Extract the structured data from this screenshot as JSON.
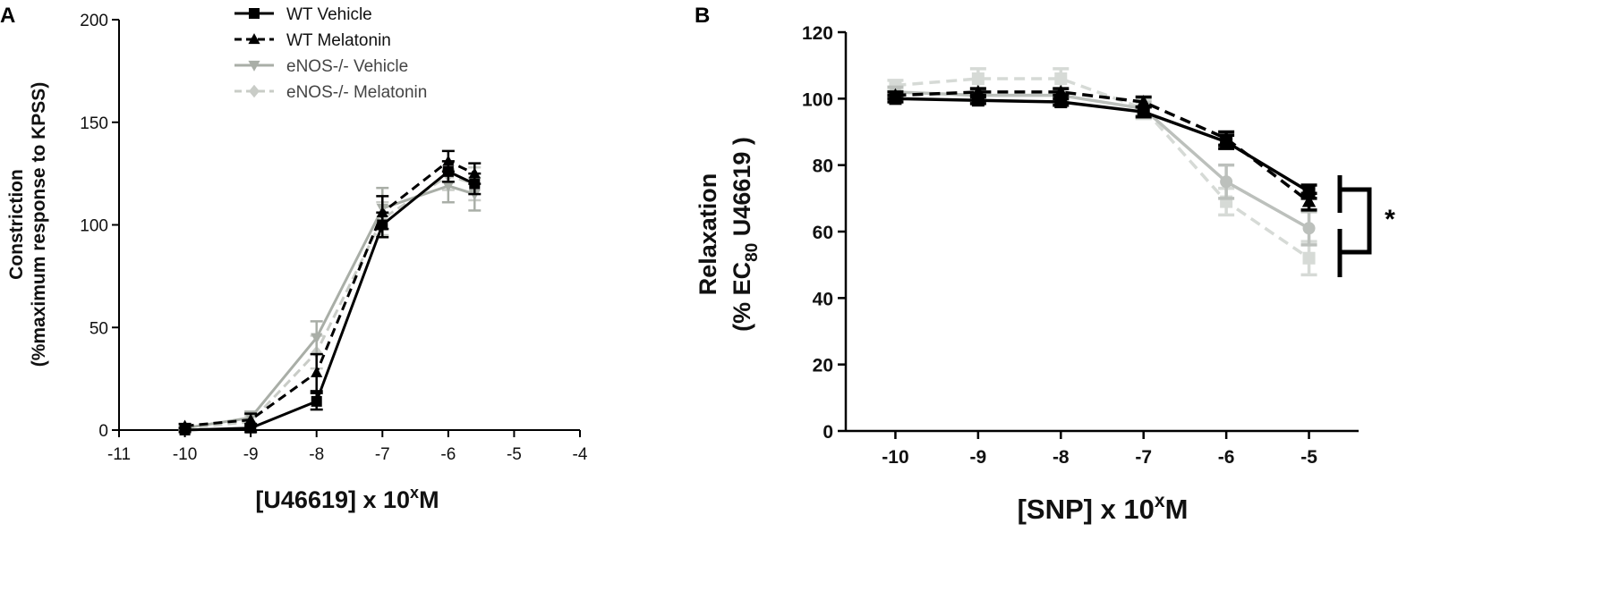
{
  "chart_data": [
    {
      "panel": "A",
      "type": "line",
      "xlabel_main": "[U46619] x 10",
      "xlabel_sup": "x",
      "xlabel_tail": "M",
      "ylabel_line1": "Constriction",
      "ylabel_line2": "(%maximum response to KPSS)",
      "xlim": [
        -11,
        -4
      ],
      "ylim": [
        0,
        200
      ],
      "xticks": [
        "-11",
        "-10",
        "-9",
        "-8",
        "-7",
        "-6",
        "-5",
        "-4"
      ],
      "yticks": [
        "0",
        "50",
        "100",
        "150",
        "200"
      ],
      "legend_position": "top",
      "series": [
        {
          "name": "WT Vehicle",
          "color": "#000000",
          "dash": false,
          "marker": "square",
          "x": [
            -10,
            -9,
            -8,
            -7,
            -6,
            -5.6
          ],
          "y": [
            0,
            1,
            14,
            100,
            126,
            120
          ],
          "err": [
            1,
            2,
            4,
            6,
            5,
            5
          ]
        },
        {
          "name": "WT Melatonin",
          "color": "#000000",
          "dash": true,
          "marker": "triangle-up",
          "x": [
            -10,
            -9,
            -8,
            -7,
            -6,
            -5.6
          ],
          "y": [
            2,
            5,
            28,
            106,
            131,
            125
          ],
          "err": [
            1,
            3,
            9,
            8,
            5,
            5
          ]
        },
        {
          "name": "eNOS-/- Vehicle",
          "color": "#a9aea7",
          "dash": false,
          "marker": "triangle-down",
          "x": [
            -10,
            -9,
            -8,
            -7,
            -6,
            -5.6
          ],
          "y": [
            1,
            6,
            45,
            108,
            119,
            115
          ],
          "err": [
            1,
            3,
            8,
            10,
            8,
            8
          ]
        },
        {
          "name": "eNOS-/- Melatonin",
          "color": "#c9ccc7",
          "dash": true,
          "marker": "diamond",
          "x": [
            -10,
            -9,
            -8,
            -7,
            -6,
            -5.6
          ],
          "y": [
            1,
            4,
            38,
            103,
            124,
            120
          ],
          "err": [
            1,
            3,
            8,
            8,
            7,
            8
          ]
        }
      ]
    },
    {
      "panel": "B",
      "type": "line",
      "xlabel_main": "[SNP] x 10",
      "xlabel_sup": "x",
      "xlabel_tail": "M",
      "ylabel_line1": "Relaxation",
      "ylabel_line2_a": "(% EC",
      "ylabel_line2_sub": "80",
      "ylabel_line2_b": " U46619 )",
      "xlim": [
        -10.6,
        -4.4
      ],
      "ylim": [
        0,
        120
      ],
      "xticks": [
        "-10",
        "-9",
        "-8",
        "-7",
        "-6",
        "-5"
      ],
      "yticks": [
        "0",
        "20",
        "40",
        "60",
        "80",
        "100",
        "120"
      ],
      "significance": "*",
      "series": [
        {
          "name": "WT Vehicle",
          "color": "#000000",
          "dash": false,
          "marker": "square",
          "x": [
            -10,
            -9,
            -8,
            -7,
            -6,
            -5
          ],
          "y": [
            100,
            99.5,
            99,
            96,
            87,
            72
          ],
          "err": [
            1,
            1,
            1,
            1.5,
            2,
            2
          ]
        },
        {
          "name": "WT Melatonin",
          "color": "#000000",
          "dash": true,
          "marker": "triangle-up",
          "x": [
            -10,
            -9,
            -8,
            -7,
            -6,
            -5
          ],
          "y": [
            101,
            102,
            102,
            99,
            88,
            69
          ],
          "err": [
            1,
            1,
            1,
            1.5,
            2,
            2.5
          ]
        },
        {
          "name": "eNOS-/- Vehicle",
          "color": "#bcc0bc",
          "dash": false,
          "marker": "circle",
          "x": [
            -10,
            -9,
            -8,
            -7,
            -6,
            -5
          ],
          "y": [
            102,
            101,
            101,
            97,
            75,
            61
          ],
          "err": [
            1.5,
            2,
            2,
            2,
            5,
            5
          ]
        },
        {
          "name": "eNOS-/- Melatonin",
          "color": "#d6dad6",
          "dash": true,
          "marker": "square",
          "x": [
            -10,
            -9,
            -8,
            -7,
            -6,
            -5
          ],
          "y": [
            104,
            106,
            106,
            97,
            69,
            52
          ],
          "err": [
            1.5,
            3,
            3,
            3,
            4,
            5
          ]
        }
      ]
    }
  ]
}
